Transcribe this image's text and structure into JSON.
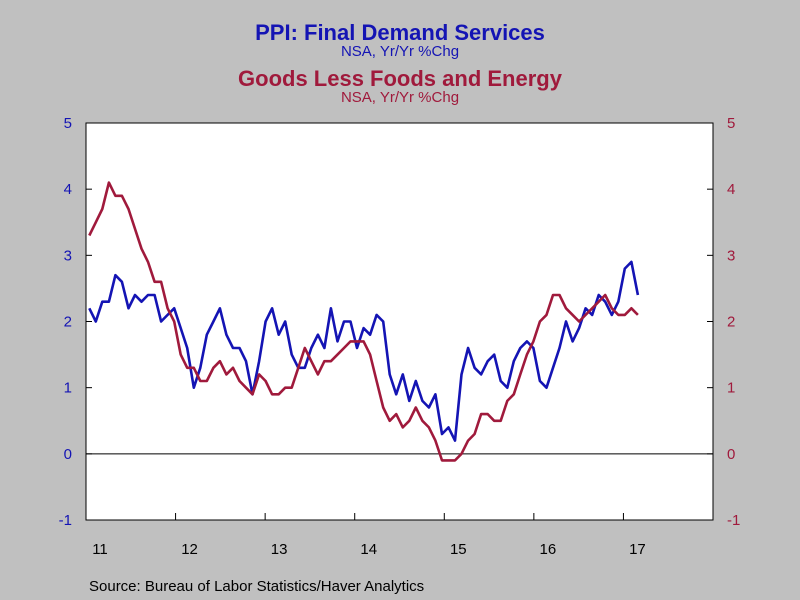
{
  "chart_data": {
    "type": "line",
    "title": "PPI: Final Demand Services",
    "subtitle": "NSA, Yr/Yr %Chg",
    "title2": "Goods Less Foods and Energy",
    "subtitle2": "NSA, Yr/Yr %Chg",
    "ylim": [
      -1,
      5
    ],
    "yticks": [
      "-1",
      "0",
      "1",
      "2",
      "3",
      "4",
      "5"
    ],
    "xtick_labels": [
      "11",
      "12",
      "13",
      "14",
      "15",
      "16",
      "17"
    ],
    "grid": false,
    "zero_line": true,
    "series": [
      {
        "color": "#1414b4",
        "start": "2011-01",
        "values": [
          2.2,
          2.0,
          2.3,
          2.3,
          2.7,
          2.6,
          2.2,
          2.4,
          2.3,
          2.4,
          2.4,
          2.0,
          2.1,
          2.2,
          1.9,
          1.6,
          1.0,
          1.3,
          1.8,
          2.0,
          2.2,
          1.8,
          1.6,
          1.6,
          1.4,
          0.9,
          1.4,
          2.0,
          2.2,
          1.8,
          2.0,
          1.5,
          1.3,
          1.3,
          1.6,
          1.8,
          1.6,
          2.2,
          1.7,
          2.0,
          2.0,
          1.6,
          1.9,
          1.8,
          2.1,
          2.0,
          1.2,
          0.9,
          1.2,
          0.8,
          1.1,
          0.8,
          0.7,
          0.9,
          0.3,
          0.4,
          0.2,
          1.2,
          1.6,
          1.3,
          1.2,
          1.4,
          1.5,
          1.1,
          1.0,
          1.4,
          1.6,
          1.7,
          1.6,
          1.1,
          1.0,
          1.3,
          1.6,
          2.0,
          1.7,
          1.9,
          2.2,
          2.1,
          2.4,
          2.3,
          2.1,
          2.3,
          2.8,
          2.9,
          2.4
        ]
      },
      {
        "color": "#a01a3c",
        "start": "2011-01",
        "values": [
          3.3,
          3.5,
          3.7,
          4.1,
          3.9,
          3.9,
          3.7,
          3.4,
          3.1,
          2.9,
          2.6,
          2.6,
          2.2,
          2.0,
          1.5,
          1.3,
          1.3,
          1.1,
          1.1,
          1.3,
          1.4,
          1.2,
          1.3,
          1.1,
          1.0,
          0.9,
          1.2,
          1.1,
          0.9,
          0.9,
          1.0,
          1.0,
          1.3,
          1.6,
          1.4,
          1.2,
          1.4,
          1.4,
          1.5,
          1.6,
          1.7,
          1.7,
          1.7,
          1.5,
          1.1,
          0.7,
          0.5,
          0.6,
          0.4,
          0.5,
          0.7,
          0.5,
          0.4,
          0.2,
          -0.1,
          -0.1,
          -0.1,
          0.0,
          0.2,
          0.3,
          0.6,
          0.6,
          0.5,
          0.5,
          0.8,
          0.9,
          1.2,
          1.5,
          1.7,
          2.0,
          2.1,
          2.4,
          2.4,
          2.2,
          2.1,
          2.0,
          2.1,
          2.2,
          2.3,
          2.4,
          2.2,
          2.1,
          2.1,
          2.2,
          2.1
        ]
      }
    ]
  },
  "source": "Source:  Bureau of Labor Statistics/Haver Analytics"
}
